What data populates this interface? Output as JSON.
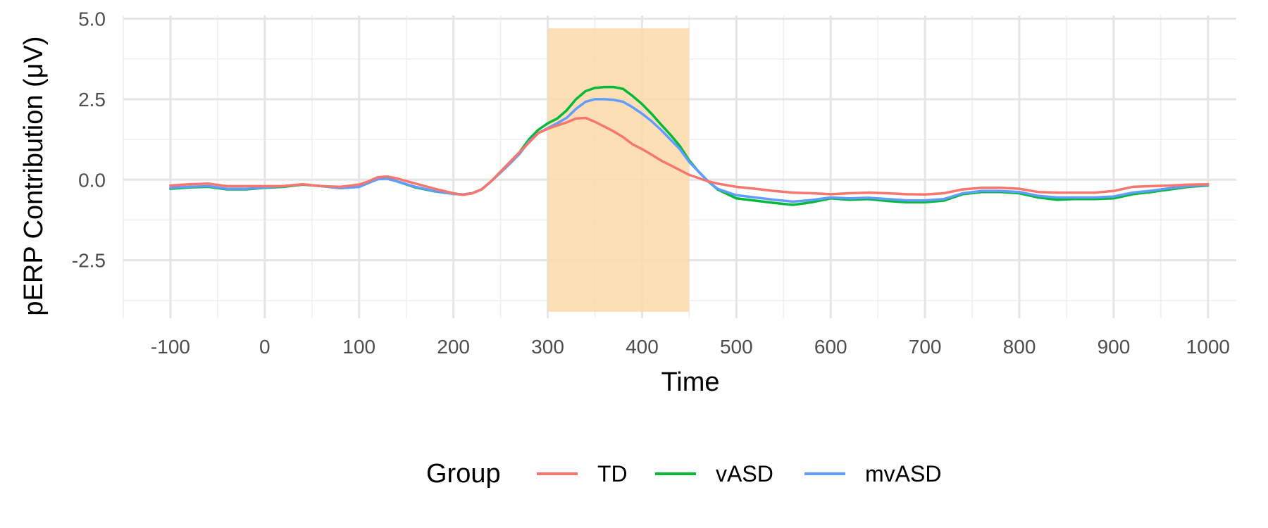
{
  "chart_data": {
    "type": "line",
    "xlabel": "Time",
    "ylabel": "pERP Contribution (μV)",
    "xlim": [
      -150,
      1030
    ],
    "ylim": [
      -4.3,
      5.1
    ],
    "x_ticks": [
      -100,
      0,
      100,
      200,
      300,
      400,
      500,
      600,
      700,
      800,
      900,
      1000
    ],
    "y_ticks": [
      -2.5,
      0.0,
      2.5,
      5.0
    ],
    "y_tick_labels": [
      "-2.5",
      "0.0",
      "2.5",
      "5.0"
    ],
    "grid": true,
    "legend": {
      "title": "Group",
      "position": "bottom"
    },
    "highlight_band": {
      "x": [
        300,
        450
      ],
      "y": [
        -4.1,
        4.7
      ],
      "color": "#fdd9a8"
    },
    "x": [
      -100,
      -80,
      -60,
      -40,
      -20,
      0,
      20,
      40,
      60,
      80,
      100,
      110,
      120,
      130,
      140,
      160,
      180,
      200,
      210,
      220,
      230,
      240,
      250,
      260,
      270,
      280,
      290,
      300,
      310,
      320,
      330,
      340,
      350,
      360,
      370,
      380,
      390,
      400,
      410,
      420,
      430,
      440,
      450,
      460,
      470,
      480,
      500,
      520,
      540,
      560,
      580,
      600,
      620,
      640,
      660,
      680,
      700,
      720,
      740,
      760,
      780,
      800,
      820,
      840,
      860,
      880,
      900,
      920,
      940,
      960,
      980,
      1000
    ],
    "series": [
      {
        "name": "TD",
        "color": "#F8766D",
        "values": [
          -0.18,
          -0.14,
          -0.12,
          -0.2,
          -0.2,
          -0.2,
          -0.2,
          -0.14,
          -0.2,
          -0.22,
          -0.15,
          -0.05,
          0.08,
          0.1,
          0.04,
          -0.12,
          -0.28,
          -0.42,
          -0.47,
          -0.42,
          -0.3,
          -0.05,
          0.25,
          0.55,
          0.85,
          1.15,
          1.45,
          1.58,
          1.68,
          1.78,
          1.9,
          1.92,
          1.8,
          1.65,
          1.5,
          1.32,
          1.1,
          0.95,
          0.78,
          0.6,
          0.45,
          0.3,
          0.15,
          0.05,
          -0.05,
          -0.12,
          -0.22,
          -0.28,
          -0.35,
          -0.4,
          -0.42,
          -0.45,
          -0.42,
          -0.4,
          -0.42,
          -0.45,
          -0.46,
          -0.42,
          -0.3,
          -0.25,
          -0.25,
          -0.28,
          -0.38,
          -0.4,
          -0.4,
          -0.4,
          -0.35,
          -0.22,
          -0.2,
          -0.18,
          -0.15,
          -0.14
        ]
      },
      {
        "name": "vASD",
        "color": "#00BA38",
        "values": [
          -0.28,
          -0.24,
          -0.22,
          -0.3,
          -0.3,
          -0.25,
          -0.22,
          -0.15,
          -0.2,
          -0.26,
          -0.22,
          -0.1,
          0.02,
          0.04,
          -0.05,
          -0.24,
          -0.36,
          -0.44,
          -0.46,
          -0.42,
          -0.3,
          -0.05,
          0.25,
          0.55,
          0.85,
          1.25,
          1.55,
          1.75,
          1.9,
          2.15,
          2.5,
          2.75,
          2.85,
          2.88,
          2.88,
          2.82,
          2.6,
          2.35,
          2.05,
          1.72,
          1.4,
          1.05,
          0.6,
          0.25,
          -0.05,
          -0.3,
          -0.58,
          -0.65,
          -0.72,
          -0.78,
          -0.7,
          -0.58,
          -0.62,
          -0.6,
          -0.66,
          -0.7,
          -0.7,
          -0.65,
          -0.45,
          -0.38,
          -0.38,
          -0.42,
          -0.55,
          -0.62,
          -0.6,
          -0.6,
          -0.58,
          -0.45,
          -0.38,
          -0.3,
          -0.22,
          -0.18
        ]
      },
      {
        "name": "mvASD",
        "color": "#619CFF",
        "values": [
          -0.25,
          -0.22,
          -0.2,
          -0.28,
          -0.28,
          -0.24,
          -0.2,
          -0.14,
          -0.2,
          -0.26,
          -0.22,
          -0.1,
          0.02,
          0.03,
          -0.05,
          -0.22,
          -0.35,
          -0.44,
          -0.46,
          -0.42,
          -0.3,
          -0.05,
          0.22,
          0.5,
          0.8,
          1.18,
          1.45,
          1.6,
          1.75,
          1.92,
          2.2,
          2.42,
          2.5,
          2.5,
          2.48,
          2.42,
          2.25,
          2.05,
          1.82,
          1.55,
          1.25,
          0.95,
          0.55,
          0.25,
          -0.05,
          -0.28,
          -0.48,
          -0.55,
          -0.62,
          -0.68,
          -0.63,
          -0.55,
          -0.58,
          -0.56,
          -0.6,
          -0.64,
          -0.64,
          -0.6,
          -0.42,
          -0.35,
          -0.35,
          -0.38,
          -0.5,
          -0.55,
          -0.55,
          -0.55,
          -0.52,
          -0.4,
          -0.34,
          -0.26,
          -0.2,
          -0.16
        ]
      }
    ]
  }
}
